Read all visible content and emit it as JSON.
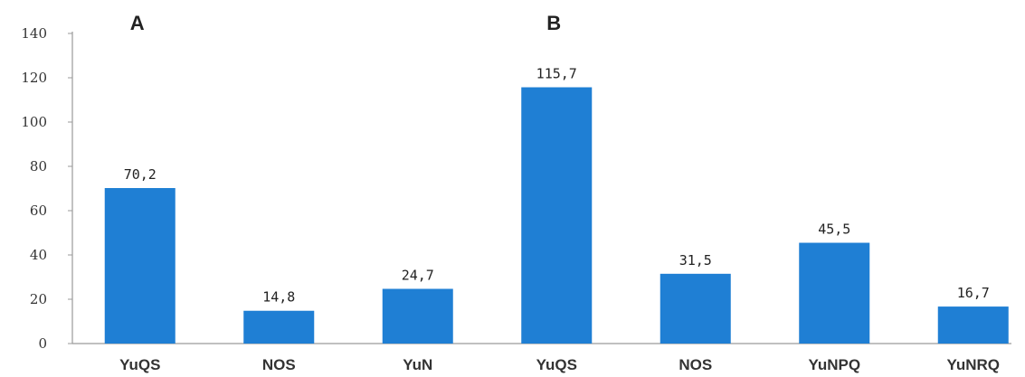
{
  "chart_data": {
    "type": "bar",
    "categories": [
      "YuQS",
      "NOS",
      "YuN",
      "YuQS",
      "NOS",
      "YuNPQ",
      "YuNRQ"
    ],
    "values": [
      70.2,
      14.8,
      24.7,
      115.7,
      31.5,
      45.5,
      16.7
    ],
    "value_labels": [
      "70,2",
      "14,8",
      "24,7",
      "115,7",
      "31,5",
      "45,5",
      "16,7"
    ],
    "y_ticks": [
      0,
      20,
      40,
      60,
      80,
      100,
      120,
      140
    ],
    "ylim": [
      0,
      140
    ],
    "panels": [
      {
        "label": "A",
        "first_category": 0
      },
      {
        "label": "B",
        "first_category": 3
      }
    ],
    "grid": false,
    "legend": "none",
    "bar_color": "#1f7fd4",
    "axis_color": "#9a9a9a"
  }
}
